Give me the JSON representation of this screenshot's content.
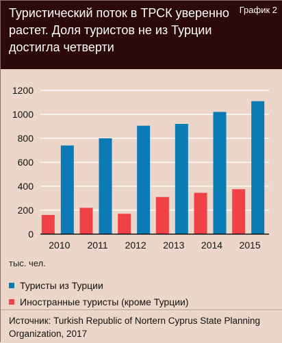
{
  "header": {
    "title": "Туристический поток в ТРСК уверенно растет. Доля туристов не из Турции достигла четверти",
    "figure_label": "График 2"
  },
  "chart_data": {
    "type": "bar",
    "title": "Туристический поток в ТРСК уверенно растет. Доля туристов не из Турции достигла четверти",
    "categories": [
      "2010",
      "2011",
      "2012",
      "2013",
      "2014",
      "2015"
    ],
    "series": [
      {
        "name": "Туристы из Турции",
        "values": [
          740,
          800,
          905,
          920,
          1020,
          1110
        ]
      },
      {
        "name": "Иностранные туристы (кроме Турции)",
        "values": [
          160,
          220,
          170,
          310,
          345,
          375
        ]
      }
    ],
    "ylabel": "тыс. чел.",
    "ylim": [
      0,
      1200
    ],
    "yticks": [
      0,
      200,
      400,
      600,
      800,
      1000,
      1200
    ],
    "grid": true,
    "legend_position": "bottom-left"
  },
  "colors": {
    "header_bg": "#2c0a09",
    "panel_bg": "#ecd6c9",
    "series": [
      "#0b7bb5",
      "#f04146"
    ],
    "grid": "#ffffff"
  },
  "source": "Источник: Turkish Republic of Nortern Cyprus State Planning Organization, 2017"
}
